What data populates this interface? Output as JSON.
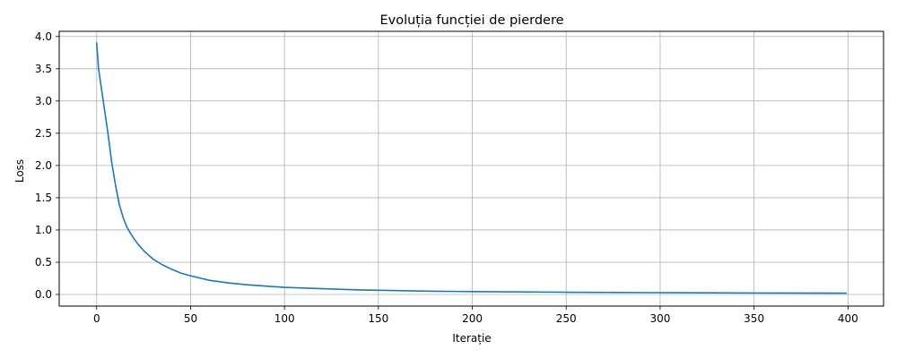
{
  "chart_data": {
    "type": "line",
    "title": "Evoluția funcției de pierdere",
    "xlabel": "Iterație",
    "ylabel": "Loss",
    "xlim": [
      -19.95,
      418.95
    ],
    "ylim": [
      -0.18,
      4.08
    ],
    "grid": true,
    "line_color": "#1f77b4",
    "x_ticks": [
      0,
      50,
      100,
      150,
      200,
      250,
      300,
      350,
      400
    ],
    "y_ticks": [
      0.0,
      0.5,
      1.0,
      1.5,
      2.0,
      2.5,
      3.0,
      3.5,
      4.0
    ],
    "x_tick_labels": [
      "0",
      "50",
      "100",
      "150",
      "200",
      "250",
      "300",
      "350",
      "400"
    ],
    "y_tick_labels": [
      "0.0",
      "0.5",
      "1.0",
      "1.5",
      "2.0",
      "2.5",
      "3.0",
      "3.5",
      "4.0"
    ],
    "series": [
      {
        "x": [
          0,
          1,
          2,
          4,
          6,
          8,
          10,
          12,
          14,
          16,
          18,
          20,
          22,
          25,
          28,
          30,
          35,
          40,
          45,
          50,
          60,
          70,
          80,
          90,
          100,
          120,
          140,
          160,
          180,
          200,
          250,
          300,
          350,
          399
        ],
        "y": [
          3.9,
          3.5,
          3.3,
          2.9,
          2.5,
          2.05,
          1.7,
          1.4,
          1.2,
          1.05,
          0.95,
          0.86,
          0.78,
          0.68,
          0.6,
          0.55,
          0.46,
          0.39,
          0.33,
          0.29,
          0.22,
          0.18,
          0.15,
          0.13,
          0.11,
          0.09,
          0.07,
          0.06,
          0.05,
          0.045,
          0.035,
          0.028,
          0.023,
          0.02
        ]
      }
    ]
  }
}
